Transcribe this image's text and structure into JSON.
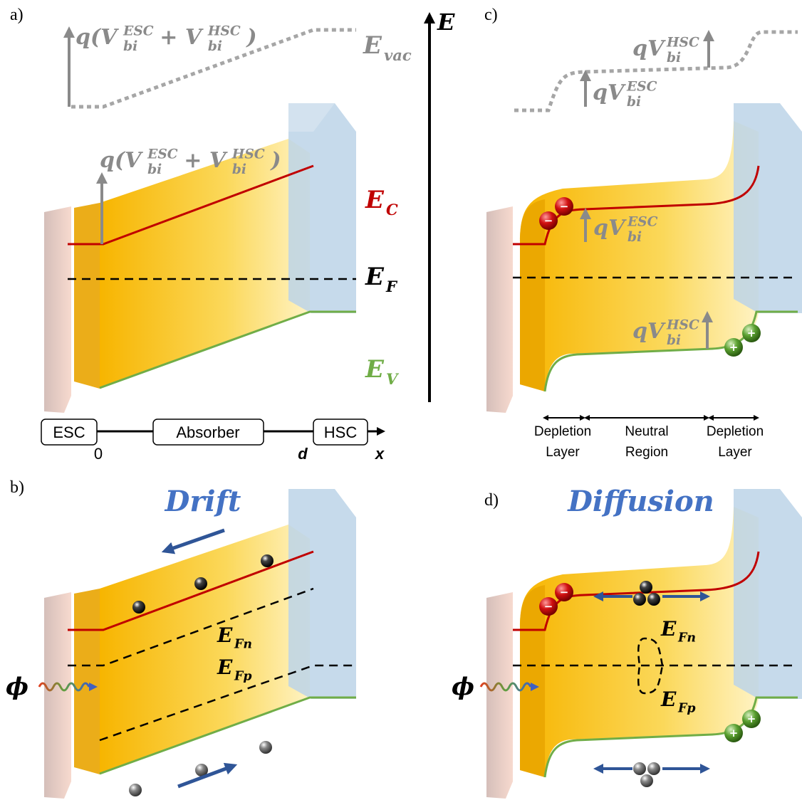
{
  "panels": {
    "a": {
      "label": "a)",
      "vacuum_step": [
        {
          "t": "q(V"
        },
        {
          "sub": "bi",
          "sup": "ESC"
        },
        {
          "t": "+ V"
        },
        {
          "sub": "bi",
          "sup": "HSC"
        },
        {
          "t": ")"
        }
      ],
      "evac": {
        "main": "E",
        "sub": "vac"
      },
      "band_step": [
        {
          "t": "q(V"
        },
        {
          "sub": "bi",
          "sup": "ESC"
        },
        {
          "t": "+ V"
        },
        {
          "sub": "bi",
          "sup": "HSC"
        },
        {
          "t": ")"
        }
      ],
      "ec": {
        "main": "E",
        "sub": "C"
      },
      "ef": {
        "main": "E",
        "sub": "F"
      },
      "ev": {
        "main": "E",
        "sub": "V"
      },
      "boxes": [
        "ESC",
        "Absorber",
        "HSC"
      ],
      "ticks": [
        "0",
        "d"
      ],
      "x_label": "x"
    },
    "energy_axis": "E",
    "c": {
      "label": "c)",
      "vac_hsc": {
        "main": "qV",
        "sub": "bi",
        "sup": "HSC"
      },
      "vac_esc": {
        "main": "qV",
        "sub": "bi",
        "sup": "ESC"
      },
      "cb_esc": {
        "main": "qV",
        "sub": "bi",
        "sup": "ESC"
      },
      "vb_hsc": {
        "main": "qV",
        "sub": "bi",
        "sup": "HSC"
      },
      "electron_sign": "−",
      "hole_sign": "+",
      "regions": [
        [
          "Depletion",
          "Layer"
        ],
        [
          "Neutral",
          "Region"
        ],
        [
          "Depletion",
          "Layer"
        ]
      ]
    },
    "b": {
      "label": "b)",
      "title": "Drift",
      "efn": {
        "main": "E",
        "sub": "Fn"
      },
      "efp": {
        "main": "E",
        "sub": "Fp"
      },
      "photon": "ϕ"
    },
    "d": {
      "label": "d)",
      "title": "Diffusion",
      "efn": {
        "main": "E",
        "sub": "Fn"
      },
      "efp": {
        "main": "E",
        "sub": "Fp"
      },
      "photon": "ϕ",
      "electron_sign": "−",
      "hole_sign": "+"
    }
  }
}
